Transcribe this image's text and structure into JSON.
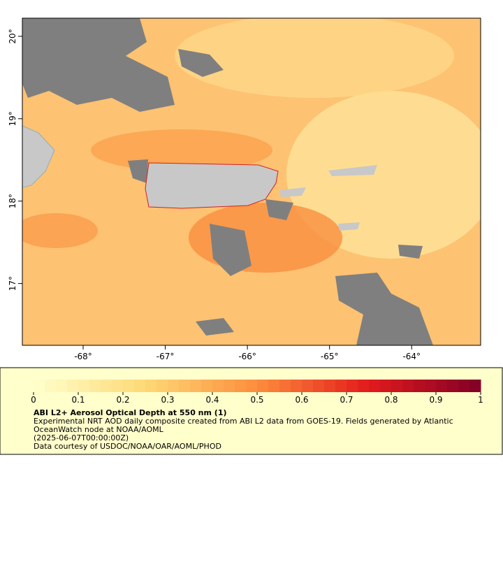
{
  "map": {
    "lon_lim": [
      -68.74,
      -63.16
    ],
    "lat_lim": [
      16.25,
      20.22
    ],
    "lon_ticks": [
      {
        "value": -68,
        "label": "-68°"
      },
      {
        "value": -67,
        "label": "-67°"
      },
      {
        "value": -66,
        "label": "-66°"
      },
      {
        "value": -65,
        "label": "-65°"
      },
      {
        "value": -64,
        "label": "-64°"
      }
    ],
    "lat_ticks": [
      {
        "value": 17,
        "label": "17°"
      },
      {
        "value": 18,
        "label": "18°"
      },
      {
        "value": 19,
        "label": "19°"
      },
      {
        "value": 20,
        "label": "20°"
      }
    ]
  },
  "colorbar": {
    "range": [
      0,
      1
    ],
    "ticks": [
      0,
      0.1,
      0.2,
      0.3,
      0.4,
      0.5,
      0.6,
      0.7,
      0.8,
      0.9,
      1
    ]
  },
  "caption": {
    "title": "ABI L2+ Aerosol Optical Depth at 550 nm (1)",
    "lines": [
      "Experimental NRT AOD daily composite created from ABI L2 data from GOES-19. Fields generated by Atlantic",
      "OceanWatch node at NOAA/AOML",
      "(2025-06-07T00:00:00Z)",
      "Data courtesy of USDOC/NOAA/OAR/AOML/PHOD"
    ]
  }
}
